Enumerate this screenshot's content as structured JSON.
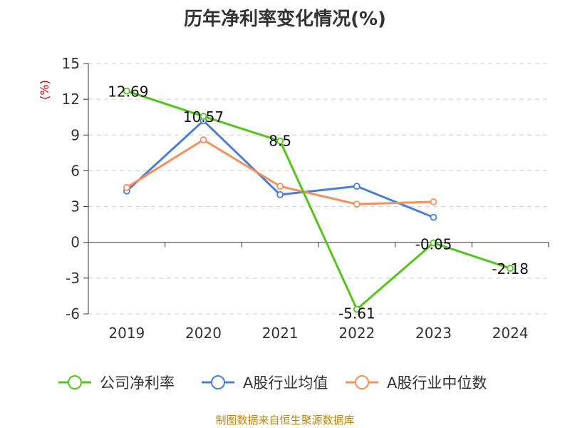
{
  "chart_data": {
    "type": "line",
    "title": "历年净利率变化情况(%)",
    "ylabel": "(%)",
    "categories": [
      "2019",
      "2020",
      "2021",
      "2022",
      "2023",
      "2024"
    ],
    "ylim": [
      -6,
      15
    ],
    "yticks": [
      15,
      12,
      9,
      6,
      3,
      0,
      -3,
      -6
    ],
    "grid": true,
    "legend_position": "bottom",
    "series": [
      {
        "name": "公司净利率",
        "color": "#52c41a",
        "values": [
          12.69,
          10.57,
          8.5,
          -5.61,
          -0.05,
          -2.18
        ],
        "data_labels": [
          "12.69",
          "10.57",
          "8.5",
          "-5.61",
          "-0.05",
          "-2.18"
        ]
      },
      {
        "name": "A股行业均值",
        "color": "#4a7fd8",
        "values": [
          4.3,
          10.2,
          4.0,
          4.7,
          2.1,
          null
        ]
      },
      {
        "name": "A股行业中位数",
        "color": "#f58f5b",
        "values": [
          4.6,
          8.6,
          4.7,
          3.2,
          3.4,
          null
        ]
      }
    ]
  },
  "source_note": "制图数据来自恒生聚源数据库"
}
